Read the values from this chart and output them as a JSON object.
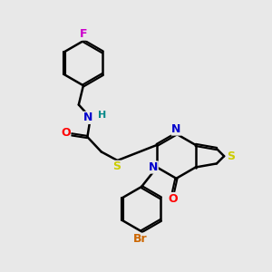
{
  "background_color": "#e8e8e8",
  "atom_colors": {
    "C": "#000000",
    "N": "#0000cc",
    "O": "#ff0000",
    "S": "#cccc00",
    "F": "#cc00cc",
    "Br": "#cc6600",
    "H": "#008888"
  },
  "bond_color": "#000000",
  "bond_width": 1.8,
  "font_size": 9,
  "figsize": [
    3.0,
    3.0
  ],
  "dpi": 100
}
